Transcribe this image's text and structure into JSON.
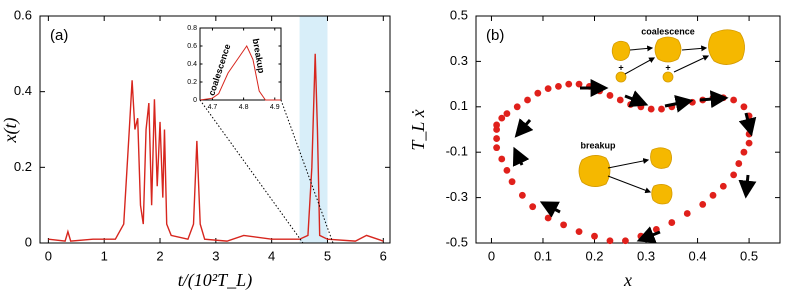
{
  "chart_data": [
    {
      "type": "line",
      "panel_label": "(a)",
      "x_label": "t/(10²T_L)",
      "y_label": "x(t)",
      "x": [
        0,
        0.3,
        0.35,
        0.4,
        0.8,
        1.2,
        1.35,
        1.45,
        1.5,
        1.55,
        1.6,
        1.65,
        1.7,
        1.75,
        1.8,
        1.85,
        1.9,
        1.95,
        2.0,
        2.05,
        2.08,
        2.12,
        2.2,
        2.5,
        2.6,
        2.66,
        2.72,
        2.8,
        3.2,
        3.5,
        4.0,
        4.5,
        4.65,
        4.72,
        4.78,
        4.82,
        4.86,
        5.0,
        5.5,
        5.7,
        5.9,
        6.0
      ],
      "series": [
        {
          "color": "#d7261e",
          "values": [
            0.01,
            0.005,
            0.03,
            0.005,
            0.01,
            0.01,
            0.05,
            0.3,
            0.43,
            0.3,
            0.33,
            0.1,
            0.05,
            0.3,
            0.37,
            0.1,
            0.38,
            0.15,
            0.32,
            0.12,
            0.3,
            0.05,
            0.02,
            0.01,
            0.05,
            0.27,
            0.05,
            0.01,
            0.005,
            0.02,
            0.01,
            0.01,
            0.02,
            0.2,
            0.5,
            0.3,
            0.02,
            0.01,
            0.005,
            0.02,
            0.01,
            0.005
          ]
        }
      ],
      "xlim": [
        -0.15,
        6.12
      ],
      "ylim": [
        0,
        0.6
      ],
      "xticks": [
        0,
        1,
        2,
        3,
        4,
        5,
        6
      ],
      "yticks": [
        0,
        0.2,
        0.4,
        0.6
      ],
      "highlight_xrange": [
        4.5,
        5.0
      ],
      "highlight_color": "#d8eef9",
      "inset": {
        "type": "line",
        "x": [
          4.66,
          4.7,
          4.72,
          4.75,
          4.78,
          4.81,
          4.83,
          4.85,
          4.87,
          4.9,
          4.92
        ],
        "series": [
          {
            "color": "#d7261e",
            "values": [
              0,
              0.02,
              0.07,
              0.3,
              0.45,
              0.6,
              0.45,
              0.1,
              0,
              0,
              0
            ]
          }
        ],
        "xlim": [
          4.66,
          4.92
        ],
        "ylim": [
          0,
          0.8
        ],
        "xticks": [
          4.7,
          4.8,
          4.9
        ],
        "yticks": [
          0,
          0.2,
          0.4,
          0.6,
          0.8
        ],
        "annotations": [
          "coalescence",
          "breakup"
        ]
      }
    },
    {
      "type": "scatter",
      "panel_label": "(b)",
      "x_label": "x",
      "y_label": "T_L ẋ",
      "x": [
        0.01,
        0.02,
        0.03,
        0.05,
        0.07,
        0.09,
        0.11,
        0.13,
        0.15,
        0.17,
        0.19,
        0.21,
        0.23,
        0.25,
        0.27,
        0.29,
        0.31,
        0.33,
        0.35,
        0.37,
        0.39,
        0.41,
        0.43,
        0.45,
        0.47,
        0.49,
        0.5,
        0.5,
        0.5,
        0.5,
        0.49,
        0.48,
        0.47,
        0.45,
        0.43,
        0.41,
        0.38,
        0.35,
        0.32,
        0.29,
        0.26,
        0.23,
        0.2,
        0.17,
        0.14,
        0.11,
        0.08,
        0.06,
        0.04,
        0.03,
        0.02,
        0.01,
        0.01,
        0.01
      ],
      "series": [
        {
          "color": "#e0201b",
          "values": [
            0.02,
            0.05,
            0.07,
            0.1,
            0.13,
            0.16,
            0.18,
            0.19,
            0.2,
            0.2,
            0.19,
            0.17,
            0.15,
            0.13,
            0.11,
            0.1,
            0.09,
            0.09,
            0.1,
            0.11,
            0.12,
            0.13,
            0.14,
            0.14,
            0.13,
            0.1,
            0.06,
            0.02,
            -0.02,
            -0.06,
            -0.1,
            -0.15,
            -0.2,
            -0.25,
            -0.29,
            -0.33,
            -0.37,
            -0.41,
            -0.44,
            -0.47,
            -0.49,
            -0.49,
            -0.47,
            -0.45,
            -0.42,
            -0.39,
            -0.34,
            -0.29,
            -0.23,
            -0.18,
            -0.13,
            -0.08,
            -0.04,
            0.0
          ]
        }
      ],
      "xlim": [
        -0.03,
        0.56
      ],
      "ylim": [
        -0.5,
        0.5
      ],
      "xticks": [
        0,
        0.1,
        0.2,
        0.3,
        0.4,
        0.5
      ],
      "yticks": [
        -0.5,
        -0.3,
        -0.1,
        0.1,
        0.3,
        0.5
      ],
      "annotations": [
        "coalescence",
        "breakup"
      ]
    }
  ]
}
